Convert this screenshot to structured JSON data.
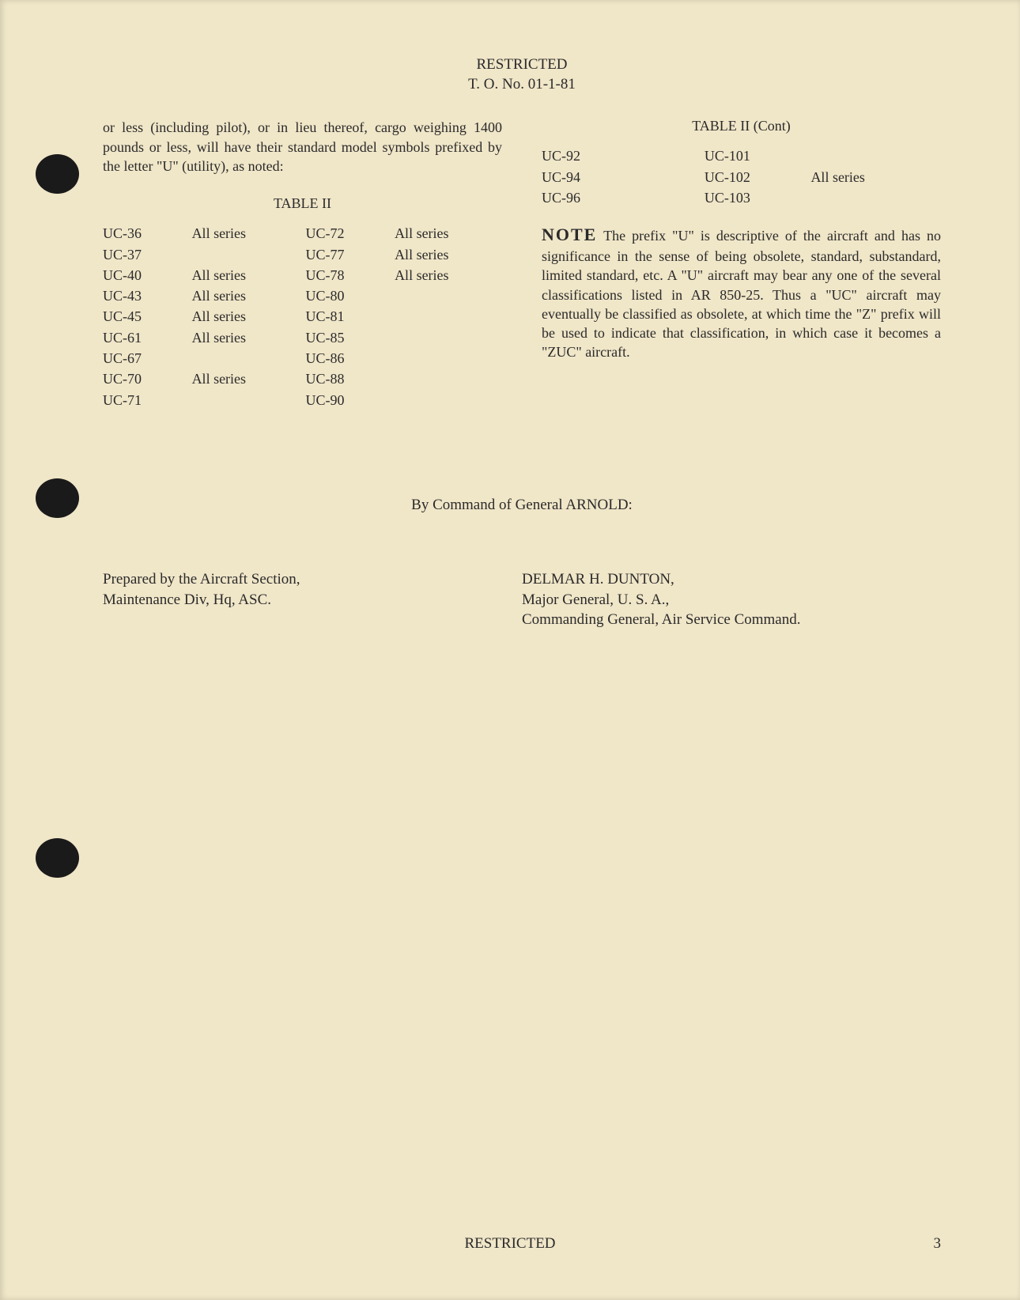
{
  "header": {
    "classification": "RESTRICTED",
    "doc_number": "T. O. No. 01-1-81"
  },
  "intro_text": "or less (including pilot), or in lieu thereof, cargo weighing 1400 pounds or less, will have their standard model symbols prefixed by the letter \"U\" (utility), as noted:",
  "table2": {
    "title": "TABLE II",
    "left_rows": [
      [
        "UC-36",
        "All series",
        "UC-72",
        "All series"
      ],
      [
        "UC-37",
        "",
        "UC-77",
        "All series"
      ],
      [
        "UC-40",
        "All series",
        "UC-78",
        "All series"
      ],
      [
        "UC-43",
        "All series",
        "UC-80",
        ""
      ],
      [
        "UC-45",
        "All series",
        "UC-81",
        ""
      ],
      [
        "UC-61",
        "All series",
        "UC-85",
        ""
      ],
      [
        "UC-67",
        "",
        "UC-86",
        ""
      ],
      [
        "UC-70",
        "All series",
        "UC-88",
        ""
      ],
      [
        "UC-71",
        "",
        "UC-90",
        ""
      ]
    ]
  },
  "table2_cont": {
    "title": "TABLE II (Cont)",
    "rows": [
      [
        "UC-92",
        "",
        "UC-101",
        ""
      ],
      [
        "UC-94",
        "",
        "UC-102",
        "All series"
      ],
      [
        "UC-96",
        "",
        "UC-103",
        ""
      ]
    ]
  },
  "note": {
    "label": "NOTE",
    "text": "The prefix \"U\" is descriptive of the aircraft and has no significance in the sense of being obsolete, standard, substandard, limited standard, etc. A \"U\" aircraft may bear any one of the several classifications listed in AR 850-25. Thus a \"UC\" aircraft may eventually be classified as obsolete, at which time the \"Z\" prefix will be used to indicate that classification, in which case it becomes a \"ZUC\" aircraft."
  },
  "command_line": "By Command of General ARNOLD:",
  "signature": {
    "prepared_line1": "Prepared by the Aircraft Section,",
    "prepared_line2": "Maintenance Div, Hq, ASC.",
    "name": "DELMAR H. DUNTON,",
    "rank": "Major General, U. S. A.,",
    "title": "Commanding General, Air Service Command."
  },
  "footer": {
    "classification": "RESTRICTED",
    "page_number": "3"
  },
  "colors": {
    "page_bg": "#f0e6c8",
    "text": "#2a2a2a",
    "hole": "#1a1a1a"
  }
}
